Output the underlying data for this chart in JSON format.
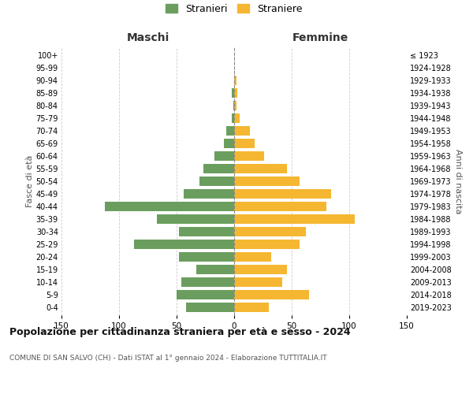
{
  "age_groups": [
    "0-4",
    "5-9",
    "10-14",
    "15-19",
    "20-24",
    "25-29",
    "30-34",
    "35-39",
    "40-44",
    "45-49",
    "50-54",
    "55-59",
    "60-64",
    "65-69",
    "70-74",
    "75-79",
    "80-84",
    "85-89",
    "90-94",
    "95-99",
    "100+"
  ],
  "birth_years": [
    "2019-2023",
    "2014-2018",
    "2009-2013",
    "2004-2008",
    "1999-2003",
    "1994-1998",
    "1989-1993",
    "1984-1988",
    "1979-1983",
    "1974-1978",
    "1969-1973",
    "1964-1968",
    "1959-1963",
    "1954-1958",
    "1949-1953",
    "1944-1948",
    "1939-1943",
    "1934-1938",
    "1929-1933",
    "1924-1928",
    "≤ 1923"
  ],
  "maschi": [
    42,
    50,
    46,
    33,
    48,
    87,
    48,
    67,
    112,
    44,
    30,
    27,
    17,
    9,
    7,
    2,
    1,
    2,
    0,
    0,
    0
  ],
  "femmine": [
    30,
    65,
    42,
    46,
    32,
    57,
    62,
    105,
    80,
    84,
    57,
    46,
    26,
    18,
    14,
    5,
    2,
    3,
    2,
    0,
    0
  ],
  "color_maschi": "#6b9e5e",
  "color_femmine": "#f5b731",
  "title_main": "Popolazione per cittadinanza straniera per età e sesso - 2024",
  "title_sub": "COMUNE DI SAN SALVO (CH) - Dati ISTAT al 1° gennaio 2024 - Elaborazione TUTTITALIA.IT",
  "label_maschi": "Stranieri",
  "label_femmine": "Straniere",
  "header_left": "Maschi",
  "header_right": "Femmine",
  "ylabel_left": "Fasce di età",
  "ylabel_right": "Anni di nascita",
  "xlim": 150,
  "background_color": "#ffffff",
  "grid_color": "#cccccc"
}
